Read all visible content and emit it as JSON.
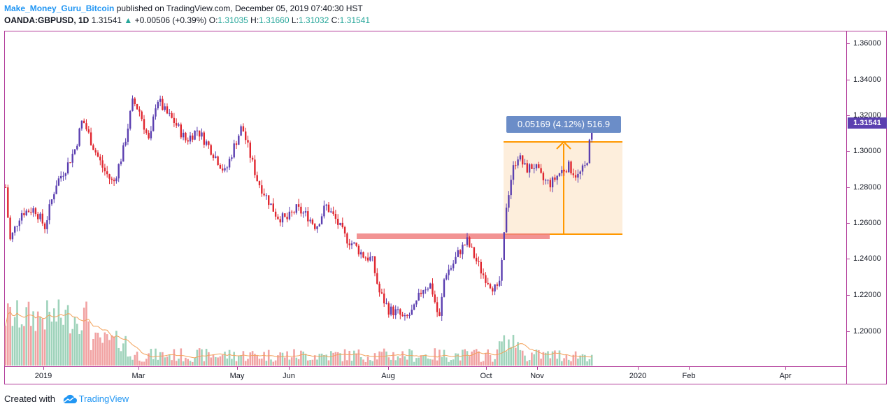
{
  "header": {
    "author": "Make_Money_Guru_Bitcoin",
    "published_text": "published on TradingView.com, December 05, 2019 07:40:30 HST",
    "symbol": "OANDA:GBPUSD, 1D",
    "last": "1.31541",
    "change": "+0.00506 (+0.39%)",
    "open_label": "O:",
    "open": "1.31035",
    "high_label": "H:",
    "high": "1.31660",
    "low_label": "L:",
    "low": "1.31032",
    "close_label": "C:",
    "close": "1.31541"
  },
  "price_axis": {
    "ticks": [
      "1.36000",
      "1.34000",
      "1.32000",
      "1.30000",
      "1.28000",
      "1.26000",
      "1.24000",
      "1.22000",
      "1.20000"
    ],
    "current_price": "1.31541"
  },
  "time_axis": {
    "labels": [
      "2019",
      "Mar",
      "May",
      "Jun",
      "Aug",
      "Oct",
      "Nov",
      "2020",
      "Feb",
      "Apr"
    ]
  },
  "measure_tool": {
    "label": "0.05169 (4.12%) 516.9"
  },
  "footer": {
    "created_with": "Created with",
    "brand": "TradingView"
  },
  "colors": {
    "up": "#26a69a",
    "bull_candle": "#5b3fb0",
    "bear_candle": "#e0262f",
    "support_zone": "#f08080",
    "measure": "#ff9800",
    "measure_fill": "#fdebd6",
    "volume_up": "#9fd3bb",
    "volume_down": "#f1a2a2",
    "volume_ma": "#f3a25b",
    "frame": "#b23c9a"
  }
}
